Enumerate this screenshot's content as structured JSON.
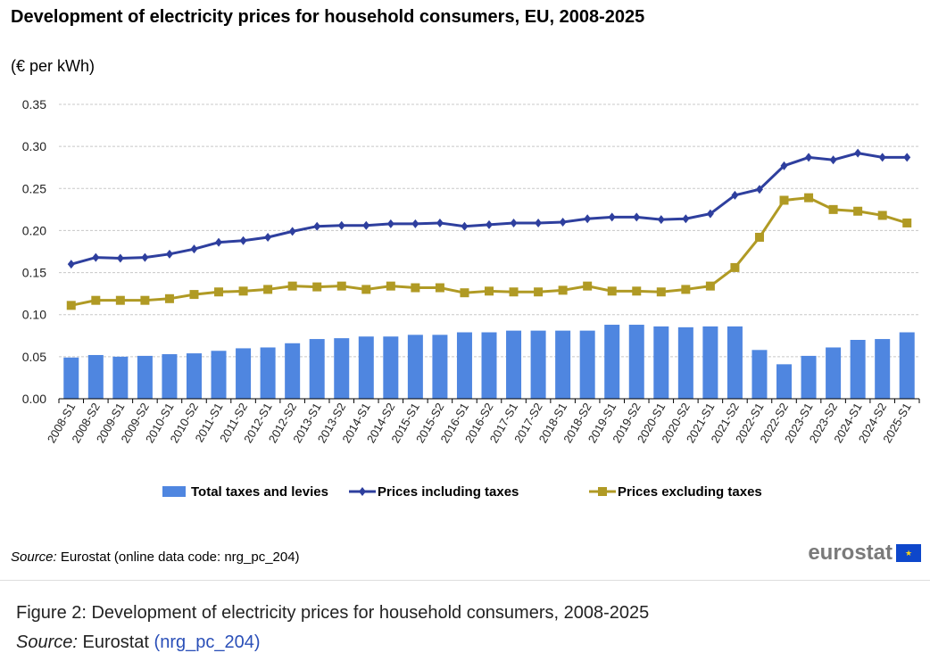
{
  "figure": {
    "title": "Development of electricity prices for household consumers, EU, 2008-2025",
    "unit": "(€ per kWh)",
    "source_label": "Source:",
    "source_text": "Eurostat (online data code: nrg_pc_204)",
    "logo_text": "eurostat"
  },
  "caption": {
    "text": "Figure 2: Development of electricity prices for household consumers, 2008-2025",
    "source_label": "Source:",
    "source_text": "Eurostat",
    "source_link": "(nrg_pc_204)"
  },
  "chart_data": {
    "type": "bar+line",
    "ylim": [
      0,
      0.35
    ],
    "yticks": [
      "0.00",
      "0.05",
      "0.10",
      "0.15",
      "0.20",
      "0.25",
      "0.30",
      "0.35"
    ],
    "grid": true,
    "legend_position": "bottom",
    "categories": [
      "2008-S1",
      "2008-S2",
      "2009-S1",
      "2009-S2",
      "2010-S1",
      "2010-S2",
      "2011-S1",
      "2011-S2",
      "2012-S1",
      "2012-S2",
      "2013-S1",
      "2013-S2",
      "2014-S1",
      "2014-S2",
      "2015-S1",
      "2015-S2",
      "2016-S1",
      "2016-S2",
      "2017-S1",
      "2017-S2",
      "2018-S1",
      "2018-S2",
      "2019-S1",
      "2019-S2",
      "2020-S1",
      "2020-S2",
      "2021-S1",
      "2021-S2",
      "2022-S1",
      "2022-S2",
      "2023-S1",
      "2023-S2",
      "2024-S1",
      "2024-S2",
      "2025-S1"
    ],
    "series": [
      {
        "name": "Total taxes and levies",
        "kind": "bar",
        "color": "#4f86e0",
        "values": [
          0.049,
          0.052,
          0.05,
          0.051,
          0.053,
          0.054,
          0.057,
          0.06,
          0.061,
          0.066,
          0.071,
          0.072,
          0.074,
          0.074,
          0.076,
          0.076,
          0.079,
          0.079,
          0.081,
          0.081,
          0.081,
          0.081,
          0.088,
          0.088,
          0.086,
          0.085,
          0.086,
          0.086,
          0.058,
          0.041,
          0.051,
          0.061,
          0.07,
          0.071,
          0.079
        ]
      },
      {
        "name": "Prices including taxes",
        "kind": "line",
        "marker": "diamond",
        "color": "#2e3f9e",
        "values": [
          0.16,
          0.168,
          0.167,
          0.168,
          0.172,
          0.178,
          0.186,
          0.188,
          0.192,
          0.199,
          0.205,
          0.206,
          0.206,
          0.208,
          0.208,
          0.209,
          0.205,
          0.207,
          0.209,
          0.209,
          0.21,
          0.214,
          0.216,
          0.216,
          0.213,
          0.214,
          0.22,
          0.242,
          0.249,
          0.277,
          0.287,
          0.284,
          0.292,
          0.287,
          0.287
        ]
      },
      {
        "name": "Prices excluding taxes",
        "kind": "line",
        "marker": "square",
        "color": "#b09a24",
        "values": [
          0.111,
          0.117,
          0.117,
          0.117,
          0.119,
          0.124,
          0.127,
          0.128,
          0.13,
          0.134,
          0.133,
          0.134,
          0.13,
          0.134,
          0.132,
          0.132,
          0.126,
          0.128,
          0.127,
          0.127,
          0.129,
          0.134,
          0.128,
          0.128,
          0.127,
          0.13,
          0.134,
          0.156,
          0.192,
          0.236,
          0.239,
          0.225,
          0.223,
          0.218,
          0.209
        ]
      }
    ]
  }
}
